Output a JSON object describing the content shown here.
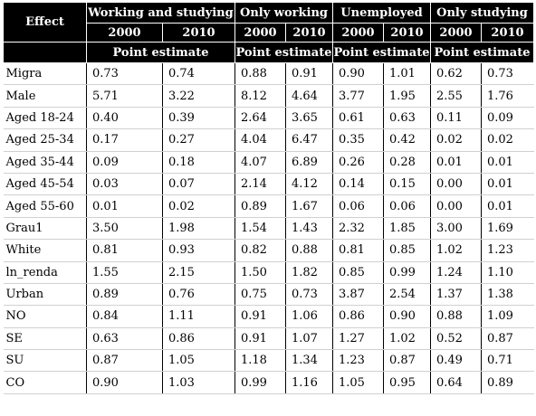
{
  "header": {
    "effect_label": "Effect",
    "groups": [
      "Working and studying",
      "Only working",
      "Unemployed",
      "Only studying"
    ],
    "years": [
      "2000",
      "2010",
      "2000",
      "2010",
      "2000",
      "2010",
      "2000",
      "2010"
    ],
    "point_estimate_label": "Point estimate"
  },
  "rows": [
    {
      "label": "Migra",
      "values": [
        "0.73",
        "0.74",
        "0.88",
        "0.91",
        "0.90",
        "1.01",
        "0.62",
        "0.73"
      ]
    },
    {
      "label": "Male",
      "values": [
        "5.71",
        "3.22",
        "8.12",
        "4.64",
        "3.77",
        "1.95",
        "2.55",
        "1.76"
      ]
    },
    {
      "label": "Aged 18-24",
      "values": [
        "0.40",
        "0.39",
        "2.64",
        "3.65",
        "0.61",
        "0.63",
        "0.11",
        "0.09"
      ]
    },
    {
      "label": "Aged 25-34",
      "values": [
        "0.17",
        "0.27",
        "4.04",
        "6.47",
        "0.35",
        "0.42",
        "0.02",
        "0.02"
      ]
    },
    {
      "label": "Aged 35-44",
      "values": [
        "0.09",
        "0.18",
        "4.07",
        "6.89",
        "0.26",
        "0.28",
        "0.01",
        "0.01"
      ]
    },
    {
      "label": "Aged 45-54",
      "values": [
        "0.03",
        "0.07",
        "2.14",
        "4.12",
        "0.14",
        "0.15",
        "0.00",
        "0.01"
      ]
    },
    {
      "label": "Aged 55-60",
      "values": [
        "0.01",
        "0.02",
        "0.89",
        "1.67",
        "0.06",
        "0.06",
        "0.00",
        "0.01"
      ]
    },
    {
      "label": "Grau1",
      "values": [
        "3.50",
        "1.98",
        "1.54",
        "1.43",
        "2.32",
        "1.85",
        "3.00",
        "1.69"
      ]
    },
    {
      "label": "White",
      "values": [
        "0.81",
        "0.93",
        "0.82",
        "0.88",
        "0.81",
        "0.85",
        "1.02",
        "1.23"
      ]
    },
    {
      "label": "ln_renda",
      "values": [
        "1.55",
        "2.15",
        "1.50",
        "1.82",
        "0.85",
        "0.99",
        "1.24",
        "1.10"
      ]
    },
    {
      "label": "Urban",
      "values": [
        "0.89",
        "0.76",
        "0.75",
        "0.73",
        "3.87",
        "2.54",
        "1.37",
        "1.38"
      ]
    },
    {
      "label": "NO",
      "values": [
        "0.84",
        "1.11",
        "0.91",
        "1.06",
        "0.86",
        "0.90",
        "0.88",
        "1.09"
      ]
    },
    {
      "label": "SE",
      "values": [
        "0.63",
        "0.86",
        "0.91",
        "1.07",
        "1.27",
        "1.02",
        "0.52",
        "0.87"
      ]
    },
    {
      "label": "SU",
      "values": [
        "0.87",
        "1.05",
        "1.18",
        "1.34",
        "1.23",
        "0.87",
        "0.49",
        "0.71"
      ]
    },
    {
      "label": "CO",
      "values": [
        "0.90",
        "1.03",
        "0.99",
        "1.16",
        "1.05",
        "0.95",
        "0.64",
        "0.89"
      ]
    }
  ]
}
